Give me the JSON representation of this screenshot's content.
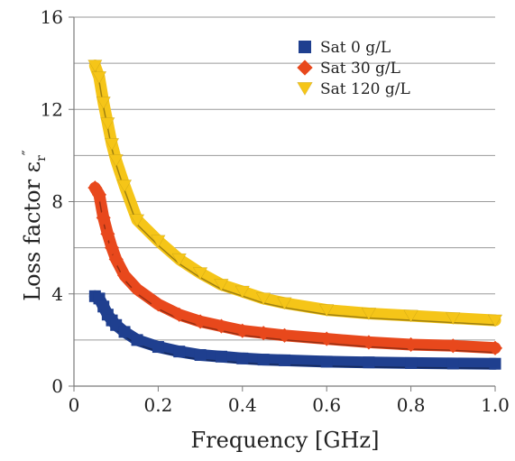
{
  "chart_data": {
    "type": "scatter",
    "title": "",
    "xlabel": "Frequency [GHz]",
    "ylabel": "Loss factor ε″",
    "ylabel_main": "Loss factor ε",
    "ylabel_sub": "r",
    "ylabel_sup": "″",
    "xlim": [
      0,
      1.0
    ],
    "ylim": [
      0,
      16
    ],
    "x_ticks": [
      0,
      0.2,
      0.4,
      0.6,
      0.8,
      1.0
    ],
    "x_tick_labels": [
      "0",
      "0.2",
      "0.4",
      "0.6",
      "0.8",
      "1.0"
    ],
    "y_ticks": [
      0,
      4,
      8,
      12,
      16
    ],
    "y_tick_labels": [
      "0",
      "4",
      "8",
      "12",
      "16"
    ],
    "y_gridlines": [
      2,
      4,
      6,
      8,
      10,
      12,
      14,
      16
    ],
    "grid": "horizontal",
    "legend_position": "top-right",
    "series": [
      {
        "name": "Sat 0 g/L",
        "marker": "square",
        "color": "#1f3f8f",
        "points": [
          [
            0.05,
            3.9
          ],
          [
            0.06,
            3.8
          ],
          [
            0.07,
            3.45
          ],
          [
            0.08,
            3.1
          ],
          [
            0.09,
            2.85
          ],
          [
            0.1,
            2.65
          ],
          [
            0.12,
            2.35
          ],
          [
            0.15,
            2.0
          ],
          [
            0.2,
            1.7
          ],
          [
            0.25,
            1.5
          ],
          [
            0.3,
            1.35
          ],
          [
            0.35,
            1.28
          ],
          [
            0.4,
            1.2
          ],
          [
            0.45,
            1.15
          ],
          [
            0.5,
            1.12
          ],
          [
            0.6,
            1.06
          ],
          [
            0.7,
            1.03
          ],
          [
            0.8,
            1.0
          ],
          [
            0.9,
            0.98
          ],
          [
            1.0,
            0.97
          ]
        ]
      },
      {
        "name": "Sat 30 g/L",
        "marker": "diamond",
        "color": "#e8481c",
        "points": [
          [
            0.05,
            8.6
          ],
          [
            0.06,
            8.3
          ],
          [
            0.07,
            7.3
          ],
          [
            0.08,
            6.6
          ],
          [
            0.09,
            6.0
          ],
          [
            0.1,
            5.5
          ],
          [
            0.12,
            4.8
          ],
          [
            0.15,
            4.2
          ],
          [
            0.2,
            3.55
          ],
          [
            0.25,
            3.1
          ],
          [
            0.3,
            2.8
          ],
          [
            0.35,
            2.6
          ],
          [
            0.4,
            2.4
          ],
          [
            0.45,
            2.3
          ],
          [
            0.5,
            2.2
          ],
          [
            0.6,
            2.05
          ],
          [
            0.7,
            1.9
          ],
          [
            0.8,
            1.8
          ],
          [
            0.9,
            1.75
          ],
          [
            1.0,
            1.65
          ]
        ]
      },
      {
        "name": "Sat 120 g/L",
        "marker": "triangle-down",
        "color": "#f5c518",
        "points": [
          [
            0.05,
            13.9
          ],
          [
            0.06,
            13.4
          ],
          [
            0.07,
            12.3
          ],
          [
            0.08,
            11.4
          ],
          [
            0.09,
            10.5
          ],
          [
            0.1,
            9.8
          ],
          [
            0.12,
            8.7
          ],
          [
            0.15,
            7.2
          ],
          [
            0.2,
            6.3
          ],
          [
            0.25,
            5.5
          ],
          [
            0.3,
            4.9
          ],
          [
            0.35,
            4.4
          ],
          [
            0.4,
            4.1
          ],
          [
            0.45,
            3.8
          ],
          [
            0.5,
            3.6
          ],
          [
            0.6,
            3.3
          ],
          [
            0.7,
            3.15
          ],
          [
            0.8,
            3.05
          ],
          [
            0.9,
            2.95
          ],
          [
            1.0,
            2.85
          ]
        ]
      }
    ]
  }
}
